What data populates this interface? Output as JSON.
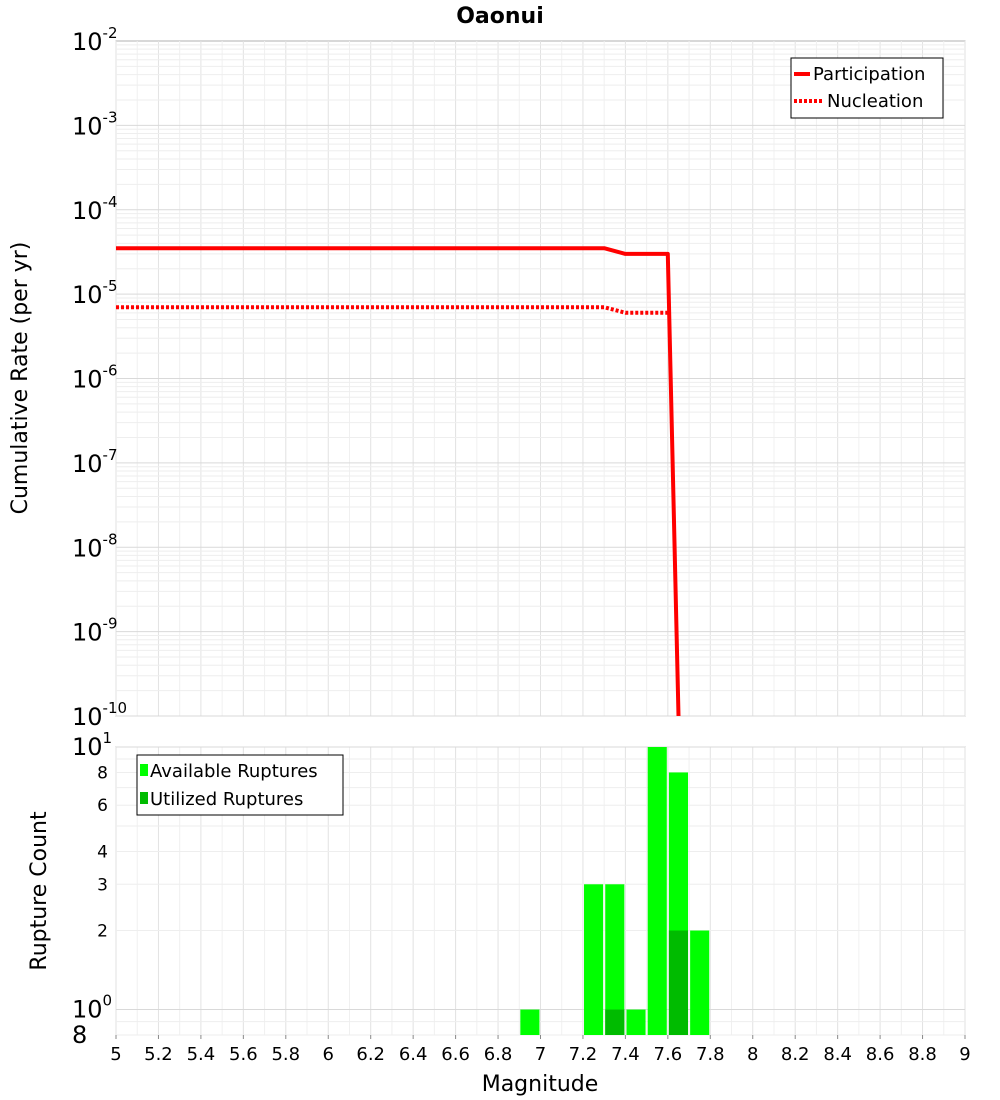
{
  "chart_data": [
    {
      "type": "line",
      "title": "Oaonui",
      "xlabel": "",
      "ylabel": "Cumulative Rate (per yr)",
      "xlim": [
        5,
        9
      ],
      "ylim": [
        1e-10,
        0.01
      ],
      "yscale": "log",
      "y_tick_labels": [
        {
          "base": "10",
          "exp": "-2"
        },
        {
          "base": "10",
          "exp": "-3"
        },
        {
          "base": "10",
          "exp": "-4"
        },
        {
          "base": "10",
          "exp": "-5"
        },
        {
          "base": "10",
          "exp": "-6"
        },
        {
          "base": "10",
          "exp": "-7"
        },
        {
          "base": "10",
          "exp": "-8"
        },
        {
          "base": "10",
          "exp": "-9"
        },
        {
          "base": "10",
          "exp": "-10"
        }
      ],
      "grid": true,
      "legend_position": "top-right",
      "series": [
        {
          "name": "Participation",
          "color": "#ff0000",
          "style": "solid",
          "x": [
            5.0,
            5.3,
            5.6,
            5.9,
            6.2,
            6.5,
            6.8,
            7.1,
            7.3,
            7.4,
            7.5,
            7.6,
            7.65
          ],
          "y": [
            3.5e-05,
            3.5e-05,
            3.5e-05,
            3.5e-05,
            3.5e-05,
            3.5e-05,
            3.5e-05,
            3.5e-05,
            3.5e-05,
            3e-05,
            3e-05,
            3e-05,
            1e-10
          ]
        },
        {
          "name": "Nucleation",
          "color": "#ff0000",
          "style": "dotted",
          "x": [
            5.0,
            5.3,
            5.6,
            5.9,
            6.2,
            6.5,
            6.8,
            7.1,
            7.3,
            7.4,
            7.5,
            7.6
          ],
          "y": [
            7e-06,
            7e-06,
            7e-06,
            7e-06,
            7e-06,
            7e-06,
            7e-06,
            7e-06,
            7e-06,
            6e-06,
            6e-06,
            6e-06
          ]
        }
      ]
    },
    {
      "type": "bar",
      "title": "",
      "xlabel": "Magnitude",
      "ylabel": "Rupture Count",
      "xlim": [
        5,
        9
      ],
      "ylim": [
        0.8,
        10
      ],
      "yscale": "log",
      "x_ticks": [
        "5",
        "5.2",
        "5.4",
        "5.6",
        "5.8",
        "6",
        "6.2",
        "6.4",
        "6.6",
        "6.8",
        "7",
        "7.2",
        "7.4",
        "7.6",
        "7.8",
        "8",
        "8.2",
        "8.4",
        "8.6",
        "8.8",
        "9"
      ],
      "y_tick_labels": [
        {
          "text": "8",
          "value": 8
        },
        {
          "text": "6",
          "value": 6
        },
        {
          "text": "4",
          "value": 4
        },
        {
          "text": "3",
          "value": 3
        },
        {
          "text": "2",
          "value": 2
        }
      ],
      "y_major_labels": [
        {
          "base": "10",
          "exp": "1",
          "value": 10
        },
        {
          "base": "10",
          "exp": "0",
          "value": 1
        },
        {
          "base": "8",
          "exp": "",
          "value": 0.8
        }
      ],
      "bar_width": 0.09,
      "grid": true,
      "legend_position": "top-left",
      "series": [
        {
          "name": "Available Ruptures",
          "color": "#00ff00",
          "x": [
            6.95,
            7.25,
            7.35,
            7.45,
            7.55,
            7.65,
            7.75
          ],
          "values": [
            1,
            3,
            3,
            1,
            10,
            8,
            2
          ]
        },
        {
          "name": "Utilized Ruptures",
          "color": "#00bb00",
          "x": [
            7.35,
            7.65
          ],
          "values": [
            1,
            2
          ]
        }
      ]
    }
  ]
}
